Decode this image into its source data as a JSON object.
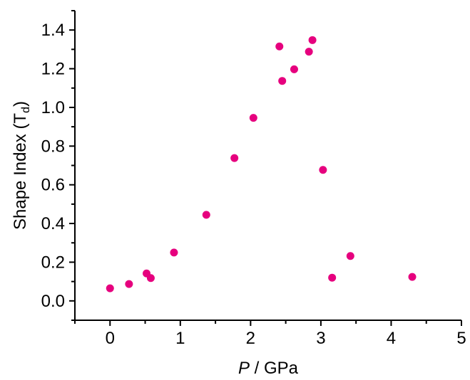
{
  "chart_data": {
    "type": "scatter",
    "xlabel_italic": "P",
    "xlabel_rest": " / GPa",
    "ylabel_main": "Shape Index (T",
    "ylabel_sub": "d",
    "ylabel_close": ")",
    "xlim": [
      -0.5,
      5.0
    ],
    "ylim": [
      -0.1,
      1.5
    ],
    "x_ticks": [
      "0",
      "1",
      "2",
      "3",
      "4",
      "5"
    ],
    "y_ticks": [
      "0.0",
      "0.2",
      "0.4",
      "0.6",
      "0.8",
      "1.0",
      "1.2",
      "1.4"
    ],
    "grid": false,
    "marker_color": "#e6007e",
    "points": [
      {
        "x": 0.0,
        "y": 0.065
      },
      {
        "x": 0.27,
        "y": 0.087
      },
      {
        "x": 0.52,
        "y": 0.142
      },
      {
        "x": 0.58,
        "y": 0.118
      },
      {
        "x": 0.91,
        "y": 0.25
      },
      {
        "x": 1.37,
        "y": 0.445
      },
      {
        "x": 1.77,
        "y": 0.738
      },
      {
        "x": 2.04,
        "y": 0.946
      },
      {
        "x": 2.41,
        "y": 1.315
      },
      {
        "x": 2.45,
        "y": 1.137
      },
      {
        "x": 2.62,
        "y": 1.197
      },
      {
        "x": 2.83,
        "y": 1.288
      },
      {
        "x": 2.88,
        "y": 1.348
      },
      {
        "x": 3.03,
        "y": 0.677
      },
      {
        "x": 3.16,
        "y": 0.12
      },
      {
        "x": 3.42,
        "y": 0.232
      },
      {
        "x": 4.3,
        "y": 0.124
      }
    ]
  }
}
